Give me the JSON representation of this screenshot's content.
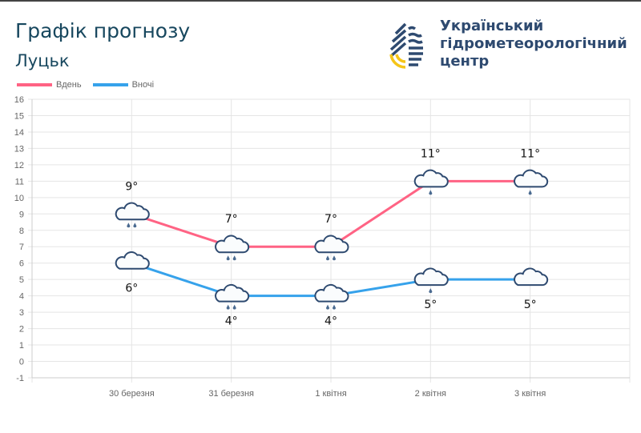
{
  "header": {
    "title": "Графік прогнозу",
    "city": "Луцьк"
  },
  "logo": {
    "lines": [
      "Український",
      "гідрометеорологічний",
      "центр"
    ]
  },
  "chart_data": {
    "type": "line",
    "categories": [
      "30 березня",
      "31 березня",
      "1 квітня",
      "2 квітня",
      "3 квітня"
    ],
    "series": [
      {
        "name": "Вдень",
        "color": "#ff6384",
        "values": [
          9,
          7,
          7,
          11,
          11
        ],
        "labels": [
          "9°",
          "7°",
          "7°",
          "11°",
          "11°"
        ],
        "icons": [
          "cloud-rain-2",
          "cloud-rain-2",
          "cloud-rain-2",
          "cloud-rain-1",
          "cloud-rain-1"
        ]
      },
      {
        "name": "Вночі",
        "color": "#36a2eb",
        "values": [
          6,
          4,
          4,
          5,
          5
        ],
        "labels": [
          "6°",
          "4°",
          "4°",
          "5°",
          "5°"
        ],
        "icons": [
          "cloud",
          "cloud-rain-2",
          "cloud-rain-2",
          "cloud-rain-1",
          "cloud"
        ]
      }
    ],
    "ylim": [
      -1,
      16
    ],
    "yticks": [
      16,
      15,
      14,
      13,
      12,
      11,
      10,
      9,
      8,
      7,
      6,
      5,
      4,
      3,
      2,
      1,
      0,
      -1
    ],
    "grid": true,
    "legend": "top-left"
  }
}
